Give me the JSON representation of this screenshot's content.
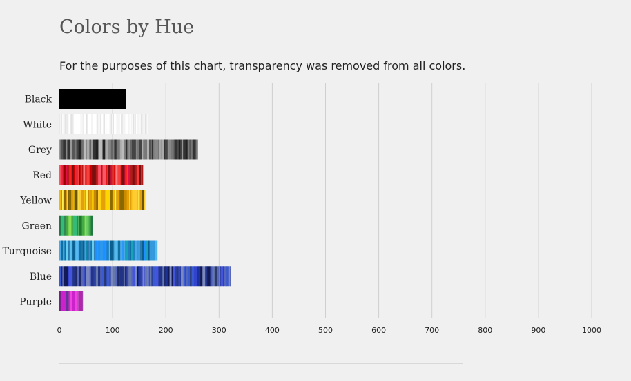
{
  "page": {
    "title": "Colors by Hue",
    "subtitle": "For the purposes of this chart, transparency was removed from all colors."
  },
  "chart_data": {
    "type": "bar",
    "orientation": "horizontal",
    "categories": [
      "Black",
      "White",
      "Grey",
      "Red",
      "Yellow",
      "Green",
      "Turquoise",
      "Blue",
      "Purple"
    ],
    "values": [
      125,
      167,
      260,
      157,
      161,
      63,
      184,
      322,
      44
    ],
    "xlim": [
      0,
      1000
    ],
    "xticks": [
      0,
      100,
      200,
      300,
      400,
      500,
      600,
      700,
      800,
      900,
      1000
    ],
    "grid": true,
    "legend": "none",
    "bar_palettes": {
      "Black": [
        "#000000",
        "#050505",
        "#020202",
        "#0a0a0a"
      ],
      "White": [
        "#ffffff",
        "#f8f8f8",
        "#ffffff",
        "#e9e9e9",
        "#ffffff",
        "#f4f4f4"
      ],
      "Grey": [
        "#333333",
        "#777777",
        "#aaaaaa",
        "#555555",
        "#999999",
        "#222222",
        "#bbbbbb",
        "#666666",
        "#444444",
        "#888888"
      ],
      "Red": [
        "#cc0000",
        "#ff2222",
        "#990000",
        "#ff5566",
        "#e83030",
        "#b31a1a",
        "#ff8080",
        "#dd1144",
        "#771111",
        "#f54040"
      ],
      "Yellow": [
        "#ffd700",
        "#f5b800",
        "#e8a000",
        "#ffee55",
        "#c98a00",
        "#8a6a00",
        "#ffcc33",
        "#f0c020",
        "#e0a010",
        "#6b5500"
      ],
      "Green": [
        "#2e8b57",
        "#44aa44",
        "#1f7a2f",
        "#66cc66",
        "#0f5f2f",
        "#33bb77",
        "#88dd55",
        "#227744"
      ],
      "Turquoise": [
        "#1e90ff",
        "#1f7fbf",
        "#3399dd",
        "#0a5f8f",
        "#55bbee",
        "#2a7ab0",
        "#17a2b8",
        "#4aa8e8",
        "#0f6fa0",
        "#66ccee"
      ],
      "Blue": [
        "#1a2fa0",
        "#3344cc",
        "#223388",
        "#4455dd",
        "#2a3a6a",
        "#5566bb",
        "#111a55",
        "#3a5ad0",
        "#6677aa",
        "#2b3f9f",
        "#7a88c0",
        "#1f2b66"
      ],
      "Purple": [
        "#cc22cc",
        "#9933aa",
        "#ee44dd",
        "#772288",
        "#bb44bb",
        "#dd11aa",
        "#663399",
        "#aa55cc"
      ]
    }
  }
}
